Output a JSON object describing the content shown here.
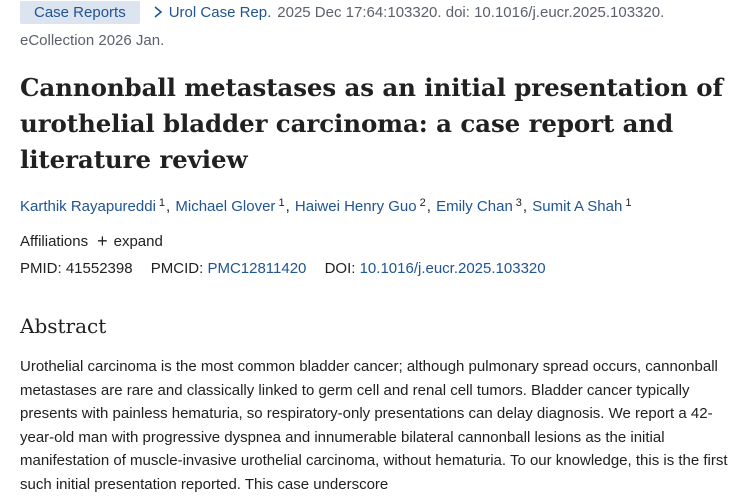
{
  "citation": {
    "article_type": "Case Reports",
    "journal": "Urol Case Rep.",
    "details": "2025 Dec 17:64:103320. doi: 10.1016/j.eucr.2025.103320.",
    "epub": "eCollection 2026 Jan."
  },
  "title": "Cannonball metastases as an initial presentation of urothelial bladder carcinoma: a case report and literature review",
  "authors": [
    {
      "name": "Karthik Rayapureddi",
      "affil": "1"
    },
    {
      "name": "Michael Glover",
      "affil": "1"
    },
    {
      "name": "Haiwei Henry Guo",
      "affil": "2"
    },
    {
      "name": "Emily Chan",
      "affil": "3"
    },
    {
      "name": "Sumit A Shah",
      "affil": "1"
    }
  ],
  "affiliations": {
    "label": "Affiliations",
    "expand_label": "expand",
    "expand_icon": "plus-icon"
  },
  "identifiers": {
    "pmid_label": "PMID:",
    "pmid": "41552398",
    "pmcid_label": "PMCID:",
    "pmcid": "PMC12811420",
    "doi_label": "DOI:",
    "doi": "10.1016/j.eucr.2025.103320"
  },
  "abstract": {
    "heading": "Abstract",
    "text": "Urothelial carcinoma is the most common bladder cancer; although pulmonary spread occurs, cannonball metastases are rare and classically linked to germ cell and renal cell tumors. Bladder cancer typically presents with painless hematuria, so respiratory-only presentations can delay diagnosis. We report a 42-year-old man with progressive dyspnea and innumerable bilateral cannonball lesions as the initial manifestation of muscle-invasive urothelial carcinoma, without hematuria. To our knowledge, this is the first such initial presentation reported. This case underscore"
  },
  "colors": {
    "link": "#205493",
    "badge_bg": "#dce4ef",
    "text": "#212121",
    "muted": "#5b616b"
  }
}
